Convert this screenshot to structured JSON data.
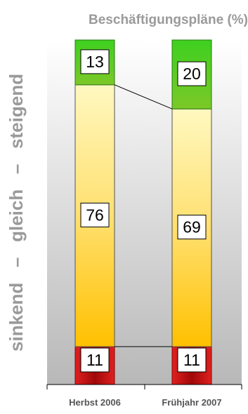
{
  "chart_data": {
    "type": "bar",
    "stacked": true,
    "title": "Beschäftigungspläne (%)",
    "ylabel": "sinkend   –   gleich   –   steigend",
    "categories": [
      "Herbst 2006",
      "Frühjahr 2007"
    ],
    "series": [
      {
        "name": "sinkend",
        "values": [
          11,
          11
        ]
      },
      {
        "name": "gleich",
        "values": [
          76,
          69
        ]
      },
      {
        "name": "steigend",
        "values": [
          13,
          20
        ]
      }
    ],
    "ylim": [
      0,
      100
    ],
    "grid": false,
    "colors": {
      "sinkend": "#c0161a",
      "gleich_top": "#fff8c0",
      "gleich_bottom": "#ffc000",
      "steigend_top": "#3ed020",
      "steigend_bottom": "#7cc828",
      "plot_bg_top": "#ffffff",
      "plot_bg_bottom": "#b8b8b8",
      "title_text": "#9a9a9a"
    }
  }
}
